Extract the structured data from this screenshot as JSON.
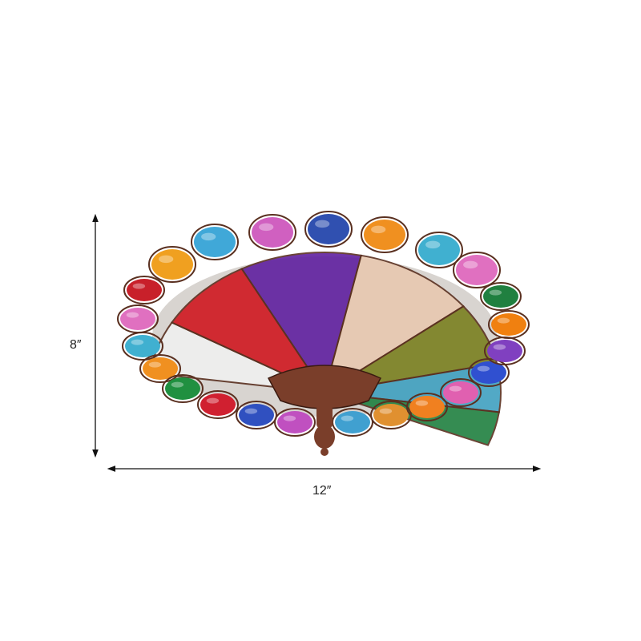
{
  "dimensions": {
    "height_label": "8″",
    "width_label": "12″"
  },
  "product": {
    "gem_colors": [
      "#c8202a",
      "#e070c0",
      "#40b0d0",
      "#f09020",
      "#209040",
      "#d02030",
      "#3050c0",
      "#c050c0",
      "#40a0d0",
      "#e09030",
      "#f08020",
      "#e060b0",
      "#3050d0",
      "#8040c0",
      "#f08010",
      "#208040",
      "#e070c0",
      "#40b0d0",
      "#f09020",
      "#3050b0",
      "#d060c0",
      "#40a8d8",
      "#f0a020"
    ],
    "fan_colors": [
      "#f0f0f0",
      "#d01820",
      "#6020a0",
      "#e8c8b0",
      "#7a8020",
      "#40a0c0",
      "#208040"
    ],
    "frame_color": "#5a3020",
    "base_color": "#7a3e2a"
  }
}
